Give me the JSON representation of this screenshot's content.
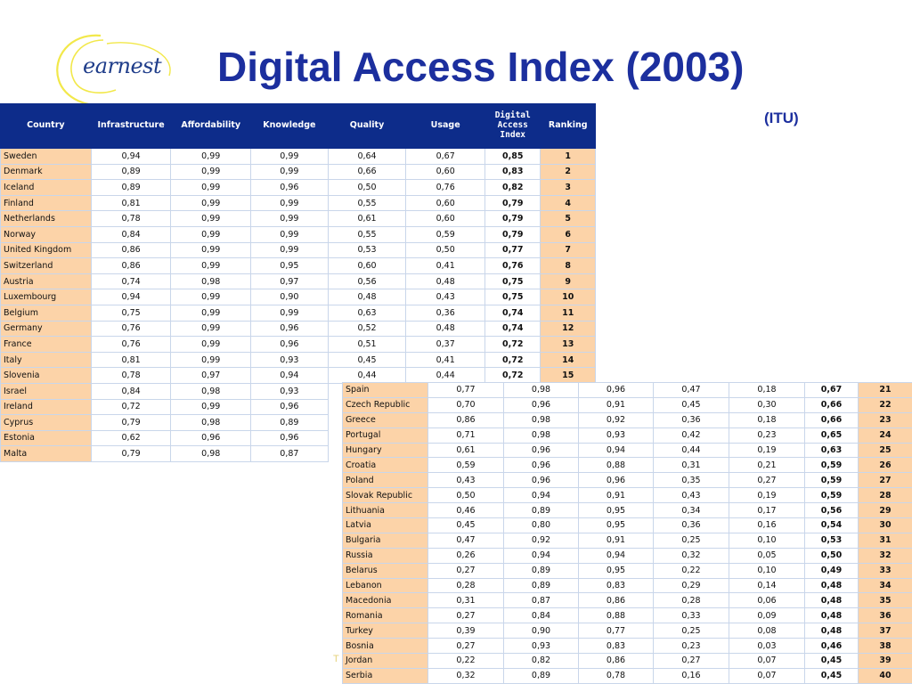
{
  "logo": {
    "text": "earnest"
  },
  "title": "Digital Access Index (2003)",
  "source": "(ITU)",
  "footer_text": "T",
  "columns": [
    "Country",
    "Infrastructure",
    "Affordability",
    "Knowledge",
    "Quality",
    "Usage",
    "Digital Access Index",
    "Ranking"
  ],
  "rows_top": [
    {
      "country": "Sweden",
      "infrastructure": "0,94",
      "affordability": "0,99",
      "knowledge": "0,99",
      "quality": "0,64",
      "usage": "0,67",
      "dai": "0,85",
      "rank": "1"
    },
    {
      "country": "Denmark",
      "infrastructure": "0,89",
      "affordability": "0,99",
      "knowledge": "0,99",
      "quality": "0,66",
      "usage": "0,60",
      "dai": "0,83",
      "rank": "2"
    },
    {
      "country": "Iceland",
      "infrastructure": "0,89",
      "affordability": "0,99",
      "knowledge": "0,96",
      "quality": "0,50",
      "usage": "0,76",
      "dai": "0,82",
      "rank": "3"
    },
    {
      "country": "Finland",
      "infrastructure": "0,81",
      "affordability": "0,99",
      "knowledge": "0,99",
      "quality": "0,55",
      "usage": "0,60",
      "dai": "0,79",
      "rank": "4"
    },
    {
      "country": "Netherlands",
      "infrastructure": "0,78",
      "affordability": "0,99",
      "knowledge": "0,99",
      "quality": "0,61",
      "usage": "0,60",
      "dai": "0,79",
      "rank": "5"
    },
    {
      "country": "Norway",
      "infrastructure": "0,84",
      "affordability": "0,99",
      "knowledge": "0,99",
      "quality": "0,55",
      "usage": "0,59",
      "dai": "0,79",
      "rank": "6"
    },
    {
      "country": "United Kingdom",
      "infrastructure": "0,86",
      "affordability": "0,99",
      "knowledge": "0,99",
      "quality": "0,53",
      "usage": "0,50",
      "dai": "0,77",
      "rank": "7"
    },
    {
      "country": "Switzerland",
      "infrastructure": "0,86",
      "affordability": "0,99",
      "knowledge": "0,95",
      "quality": "0,60",
      "usage": "0,41",
      "dai": "0,76",
      "rank": "8"
    },
    {
      "country": "Austria",
      "infrastructure": "0,74",
      "affordability": "0,98",
      "knowledge": "0,97",
      "quality": "0,56",
      "usage": "0,48",
      "dai": "0,75",
      "rank": "9"
    },
    {
      "country": "Luxembourg",
      "infrastructure": "0,94",
      "affordability": "0,99",
      "knowledge": "0,90",
      "quality": "0,48",
      "usage": "0,43",
      "dai": "0,75",
      "rank": "10"
    },
    {
      "country": "Belgium",
      "infrastructure": "0,75",
      "affordability": "0,99",
      "knowledge": "0,99",
      "quality": "0,63",
      "usage": "0,36",
      "dai": "0,74",
      "rank": "11"
    },
    {
      "country": "Germany",
      "infrastructure": "0,76",
      "affordability": "0,99",
      "knowledge": "0,96",
      "quality": "0,52",
      "usage": "0,48",
      "dai": "0,74",
      "rank": "12"
    },
    {
      "country": "France",
      "infrastructure": "0,76",
      "affordability": "0,99",
      "knowledge": "0,96",
      "quality": "0,51",
      "usage": "0,37",
      "dai": "0,72",
      "rank": "13"
    },
    {
      "country": "Italy",
      "infrastructure": "0,81",
      "affordability": "0,99",
      "knowledge": "0,93",
      "quality": "0,45",
      "usage": "0,41",
      "dai": "0,72",
      "rank": "14"
    },
    {
      "country": "Slovenia",
      "infrastructure": "0,78",
      "affordability": "0,97",
      "knowledge": "0,94",
      "quality": "0,44",
      "usage": "0,44",
      "dai": "0,72",
      "rank": "15"
    },
    {
      "country": "Israel",
      "infrastructure": "0,84",
      "affordability": "0,98",
      "knowledge": "0,93",
      "quality": "",
      "usage": "",
      "dai": "",
      "rank": ""
    },
    {
      "country": "Ireland",
      "infrastructure": "0,72",
      "affordability": "0,99",
      "knowledge": "0,96",
      "quality": "",
      "usage": "",
      "dai": "",
      "rank": ""
    },
    {
      "country": "Cyprus",
      "infrastructure": "0,79",
      "affordability": "0,98",
      "knowledge": "0,89",
      "quality": "",
      "usage": "",
      "dai": "",
      "rank": ""
    },
    {
      "country": "Estonia",
      "infrastructure": "0,62",
      "affordability": "0,96",
      "knowledge": "0,96",
      "quality": "",
      "usage": "",
      "dai": "",
      "rank": ""
    },
    {
      "country": "Malta",
      "infrastructure": "0,79",
      "affordability": "0,98",
      "knowledge": "0,87",
      "quality": "",
      "usage": "",
      "dai": "",
      "rank": ""
    }
  ],
  "rows_bottom": [
    {
      "country": "Spain",
      "infrastructure": "0,77",
      "affordability": "0,98",
      "knowledge": "0,96",
      "quality": "0,47",
      "usage": "0,18",
      "dai": "0,67",
      "rank": "21"
    },
    {
      "country": "Czech Republic",
      "infrastructure": "0,70",
      "affordability": "0,96",
      "knowledge": "0,91",
      "quality": "0,45",
      "usage": "0,30",
      "dai": "0,66",
      "rank": "22"
    },
    {
      "country": "Greece",
      "infrastructure": "0,86",
      "affordability": "0,98",
      "knowledge": "0,92",
      "quality": "0,36",
      "usage": "0,18",
      "dai": "0,66",
      "rank": "23"
    },
    {
      "country": "Portugal",
      "infrastructure": "0,71",
      "affordability": "0,98",
      "knowledge": "0,93",
      "quality": "0,42",
      "usage": "0,23",
      "dai": "0,65",
      "rank": "24"
    },
    {
      "country": "Hungary",
      "infrastructure": "0,61",
      "affordability": "0,96",
      "knowledge": "0,94",
      "quality": "0,44",
      "usage": "0,19",
      "dai": "0,63",
      "rank": "25"
    },
    {
      "country": "Croatia",
      "infrastructure": "0,59",
      "affordability": "0,96",
      "knowledge": "0,88",
      "quality": "0,31",
      "usage": "0,21",
      "dai": "0,59",
      "rank": "26"
    },
    {
      "country": "Poland",
      "infrastructure": "0,43",
      "affordability": "0,96",
      "knowledge": "0,96",
      "quality": "0,35",
      "usage": "0,27",
      "dai": "0,59",
      "rank": "27"
    },
    {
      "country": "Slovak Republic",
      "infrastructure": "0,50",
      "affordability": "0,94",
      "knowledge": "0,91",
      "quality": "0,43",
      "usage": "0,19",
      "dai": "0,59",
      "rank": "28"
    },
    {
      "country": "Lithuania",
      "infrastructure": "0,46",
      "affordability": "0,89",
      "knowledge": "0,95",
      "quality": "0,34",
      "usage": "0,17",
      "dai": "0,56",
      "rank": "29"
    },
    {
      "country": "Latvia",
      "infrastructure": "0,45",
      "affordability": "0,80",
      "knowledge": "0,95",
      "quality": "0,36",
      "usage": "0,16",
      "dai": "0,54",
      "rank": "30"
    },
    {
      "country": "Bulgaria",
      "infrastructure": "0,47",
      "affordability": "0,92",
      "knowledge": "0,91",
      "quality": "0,25",
      "usage": "0,10",
      "dai": "0,53",
      "rank": "31"
    },
    {
      "country": "Russia",
      "infrastructure": "0,26",
      "affordability": "0,94",
      "knowledge": "0,94",
      "quality": "0,32",
      "usage": "0,05",
      "dai": "0,50",
      "rank": "32"
    },
    {
      "country": "Belarus",
      "infrastructure": "0,27",
      "affordability": "0,89",
      "knowledge": "0,95",
      "quality": "0,22",
      "usage": "0,10",
      "dai": "0,49",
      "rank": "33"
    },
    {
      "country": "Lebanon",
      "infrastructure": "0,28",
      "affordability": "0,89",
      "knowledge": "0,83",
      "quality": "0,29",
      "usage": "0,14",
      "dai": "0,48",
      "rank": "34"
    },
    {
      "country": "Macedonia",
      "infrastructure": "0,31",
      "affordability": "0,87",
      "knowledge": "0,86",
      "quality": "0,28",
      "usage": "0,06",
      "dai": "0,48",
      "rank": "35"
    },
    {
      "country": "Romania",
      "infrastructure": "0,27",
      "affordability": "0,84",
      "knowledge": "0,88",
      "quality": "0,33",
      "usage": "0,09",
      "dai": "0,48",
      "rank": "36"
    },
    {
      "country": "Turkey",
      "infrastructure": "0,39",
      "affordability": "0,90",
      "knowledge": "0,77",
      "quality": "0,25",
      "usage": "0,08",
      "dai": "0,48",
      "rank": "37"
    },
    {
      "country": "Bosnia",
      "infrastructure": "0,27",
      "affordability": "0,93",
      "knowledge": "0,83",
      "quality": "0,23",
      "usage": "0,03",
      "dai": "0,46",
      "rank": "38"
    },
    {
      "country": "Jordan",
      "infrastructure": "0,22",
      "affordability": "0,82",
      "knowledge": "0,86",
      "quality": "0,27",
      "usage": "0,07",
      "dai": "0,45",
      "rank": "39"
    },
    {
      "country": "Serbia",
      "infrastructure": "0,32",
      "affordability": "0,89",
      "knowledge": "0,78",
      "quality": "0,16",
      "usage": "0,07",
      "dai": "0,45",
      "rank": "40"
    }
  ],
  "colors": {
    "header_bg": "#0d2c8a",
    "highlight_bg": "#fcd3a8",
    "title": "#1c2f9e",
    "logo_swirl": "#f2e84a"
  }
}
